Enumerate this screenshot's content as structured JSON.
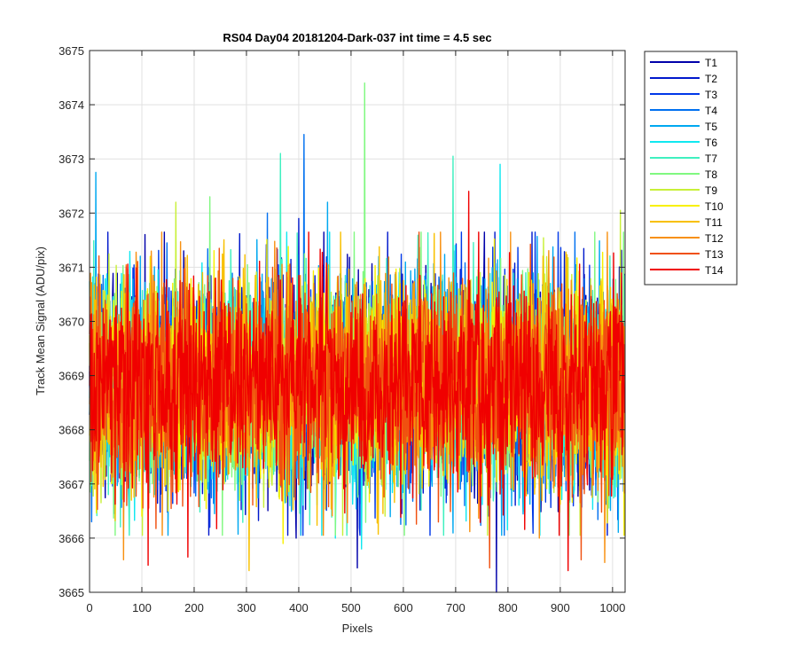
{
  "chart_data": {
    "type": "line",
    "title": "RS04 Day04 20181204-Dark-037 int time = 4.5 sec",
    "xlabel": "Pixels",
    "ylabel": "Track Mean Signal (ADU/pix)",
    "xlim": [
      0,
      1024
    ],
    "ylim": [
      3665,
      3675
    ],
    "xticks": [
      0,
      100,
      200,
      300,
      400,
      500,
      600,
      700,
      800,
      900,
      1000
    ],
    "yticks": [
      3665,
      3666,
      3667,
      3668,
      3669,
      3670,
      3671,
      3672,
      3673,
      3674,
      3675
    ],
    "grid": true,
    "legend_position": "outside-right",
    "noise_model": {
      "mean": 3668.85,
      "std": 0.95,
      "num_points": 1024
    },
    "series": [
      {
        "name": "T1",
        "color": "#0000aa",
        "peaks": [
          [
            778,
            3665.0
          ],
          [
            512,
            3665.45
          ],
          [
            395,
            3666.0
          ]
        ]
      },
      {
        "name": "T2",
        "color": "#0018cc",
        "peaks": [
          [
            400,
            3671.9
          ],
          [
            515,
            3666.8
          ]
        ]
      },
      {
        "name": "T3",
        "color": "#0038e8",
        "peaks": [
          [
            75,
            3666.6
          ],
          [
            230,
            3666.2
          ]
        ]
      },
      {
        "name": "T4",
        "color": "#0070f0",
        "peaks": [
          [
            410,
            3673.45
          ],
          [
            340,
            3672.0
          ]
        ]
      },
      {
        "name": "T5",
        "color": "#00a8f0",
        "peaks": [
          [
            12,
            3672.75
          ],
          [
            455,
            3672.2
          ]
        ]
      },
      {
        "name": "T6",
        "color": "#10e8f0",
        "peaks": [
          [
            785,
            3672.9
          ],
          [
            470,
            3666.0
          ],
          [
            520,
            3665.8
          ]
        ]
      },
      {
        "name": "T7",
        "color": "#40f0c0",
        "peaks": [
          [
            365,
            3673.1
          ],
          [
            695,
            3673.05
          ]
        ]
      },
      {
        "name": "T8",
        "color": "#80f880",
        "peaks": [
          [
            526,
            3674.4
          ],
          [
            230,
            3672.3
          ]
        ]
      },
      {
        "name": "T9",
        "color": "#c8f038",
        "peaks": [
          [
            1015,
            3672.05
          ],
          [
            165,
            3672.2
          ]
        ]
      },
      {
        "name": "T10",
        "color": "#f8f000",
        "peaks": [
          [
            370,
            3665.9
          ],
          [
            150,
            3666.5
          ]
        ]
      },
      {
        "name": "T11",
        "color": "#f8c000",
        "peaks": [
          [
            305,
            3665.4
          ],
          [
            80,
            3666.7
          ]
        ]
      },
      {
        "name": "T12",
        "color": "#f89010",
        "peaks": [
          [
            65,
            3665.6
          ],
          [
            985,
            3665.55
          ],
          [
            860,
            3666.0
          ]
        ]
      },
      {
        "name": "T13",
        "color": "#f05010",
        "peaks": [
          [
            765,
            3665.45
          ],
          [
            940,
            3665.6
          ]
        ]
      },
      {
        "name": "T14",
        "color": "#f00000",
        "peaks": [
          [
            725,
            3672.4
          ],
          [
            112,
            3665.5
          ],
          [
            188,
            3665.65
          ],
          [
            915,
            3665.4
          ]
        ]
      }
    ]
  }
}
